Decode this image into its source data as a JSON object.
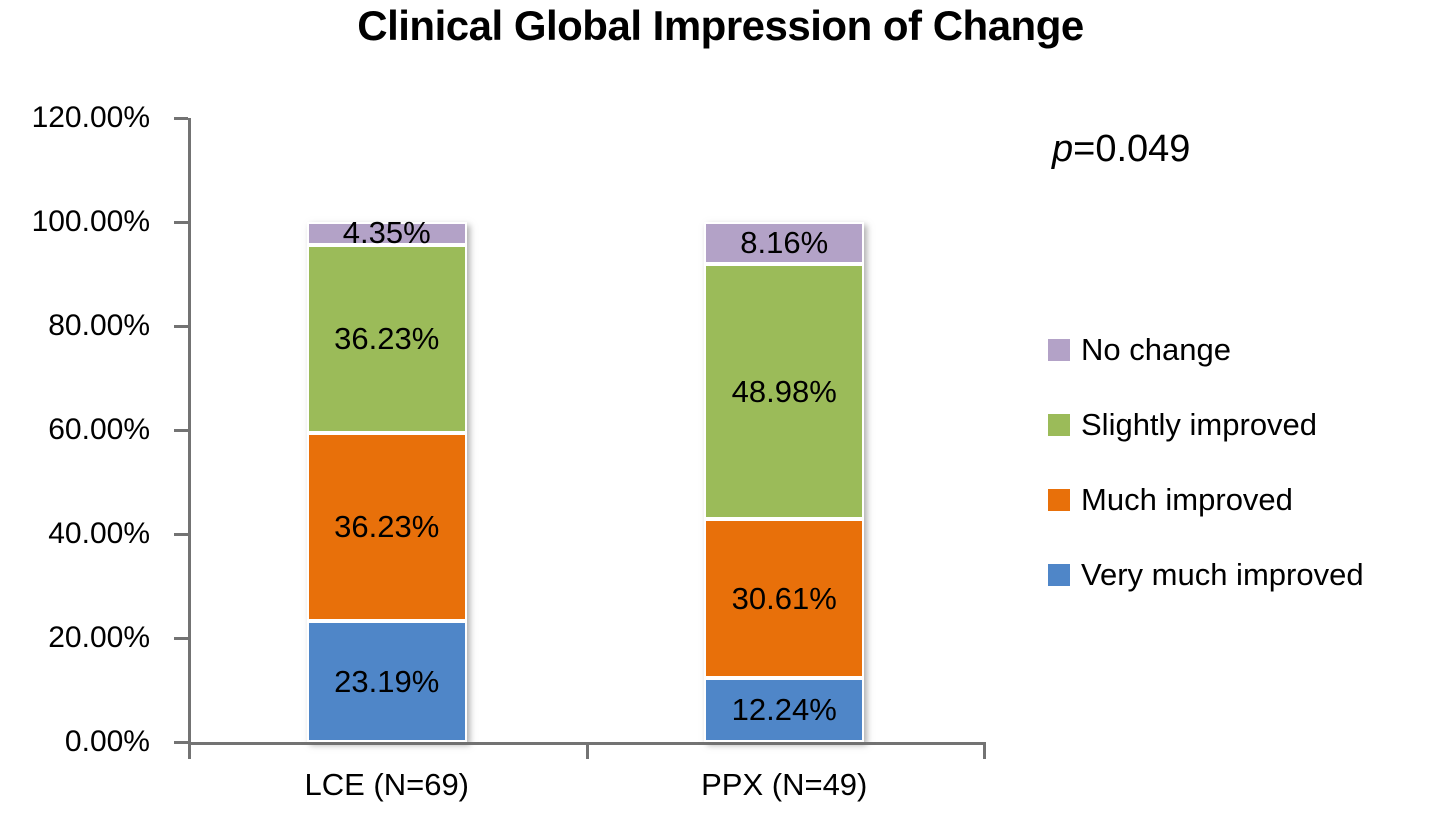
{
  "annotation": {
    "p": "p",
    "value": "=0.049"
  },
  "colors": {
    "axis": "#737373",
    "text": "#000000",
    "background": "#FFFFFF",
    "very_much_improved": "#4F86C8",
    "much_improved": "#E8700A",
    "slightly_improved": "#9BBB59",
    "no_change": "#B3A2C7"
  },
  "chart_data": {
    "type": "bar",
    "stacked": true,
    "title": "Clinical Global Impression of Change",
    "categories": [
      "LCE (N=69)",
      "PPX (N=49)"
    ],
    "series": [
      {
        "name": "Very much improved",
        "color": "#4F86C8",
        "values": [
          23.19,
          12.24
        ],
        "labels": [
          "23.19%",
          "12.24%"
        ]
      },
      {
        "name": "Much improved",
        "color": "#E8700A",
        "values": [
          36.23,
          30.61
        ],
        "labels": [
          "36.23%",
          "30.61%"
        ]
      },
      {
        "name": "Slightly improved",
        "color": "#9BBB59",
        "values": [
          36.23,
          48.98
        ],
        "labels": [
          "36.23%",
          "48.98%"
        ]
      },
      {
        "name": "No change",
        "color": "#B3A2C7",
        "values": [
          4.35,
          8.16
        ],
        "labels": [
          "4.35%",
          "8.16%"
        ]
      }
    ],
    "xlabel": "",
    "ylabel": "",
    "ylim": [
      0,
      120
    ],
    "ytick_step": 20,
    "yticks": [
      "0.00%",
      "20.00%",
      "40.00%",
      "60.00%",
      "80.00%",
      "100.00%",
      "120.00%"
    ],
    "grid": false,
    "legend_position": "right",
    "legend": [
      {
        "label": "No change",
        "color": "#B3A2C7"
      },
      {
        "label": "Slightly improved",
        "color": "#9BBB59"
      },
      {
        "label": "Much improved",
        "color": "#E8700A"
      },
      {
        "label": "Very much improved",
        "color": "#4F86C8"
      }
    ],
    "annotation": "p=0.049"
  }
}
